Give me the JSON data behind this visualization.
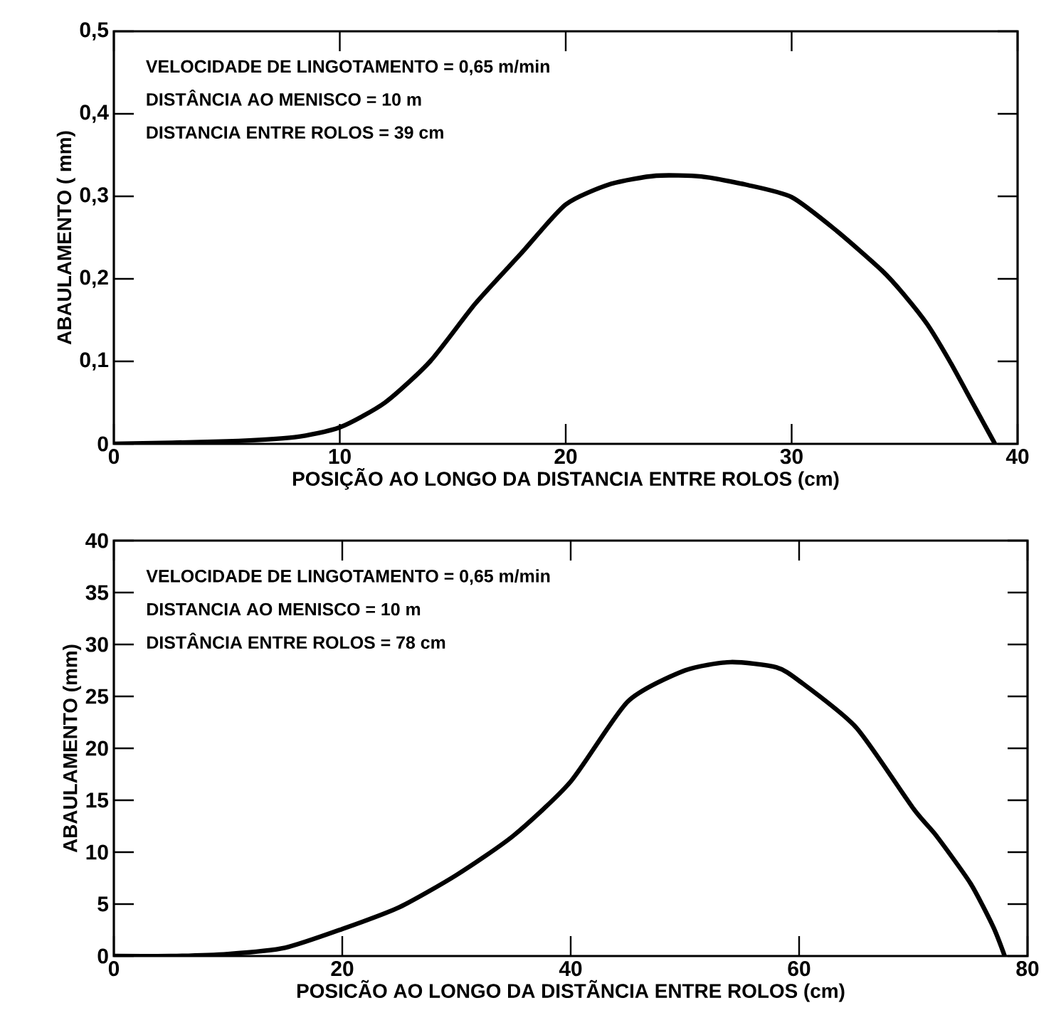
{
  "chart_data": [
    {
      "type": "line",
      "xlabel": "POSIÇÃO AO LONGO DA DISTANCIA ENTRE ROLOS (cm)",
      "ylabel": "ABAULAMENTO ( mm)",
      "annotations": [
        "VELOCIDADE DE LINGOTAMENTO = 0,65 m/min",
        "DISTÂNCIA AO MENISCO = 10 m",
        "DISTANCIA ENTRE ROLOS = 39 cm"
      ],
      "xlim": [
        0,
        40
      ],
      "ylim": [
        0,
        0.5
      ],
      "xticks": [
        0,
        10,
        20,
        30,
        40
      ],
      "yticks": [
        {
          "value": 0,
          "label": "0"
        },
        {
          "value": 0.1,
          "label": "0,1"
        },
        {
          "value": 0.2,
          "label": "0,2"
        },
        {
          "value": 0.3,
          "label": "0,3"
        },
        {
          "value": 0.4,
          "label": "0,4"
        },
        {
          "value": 0.5,
          "label": "0,5"
        }
      ],
      "grid": false,
      "marker": "none",
      "line_style": "solid",
      "series": [
        {
          "color": "#000000",
          "x": [
            0,
            5,
            8,
            10,
            12,
            14,
            16,
            18,
            20,
            22,
            24,
            26,
            28,
            30,
            32,
            34,
            35,
            36,
            37,
            38,
            38.5,
            39
          ],
          "values": [
            0,
            0.003,
            0.008,
            0.02,
            0.05,
            0.1,
            0.17,
            0.23,
            0.29,
            0.315,
            0.325,
            0.324,
            0.314,
            0.299,
            0.258,
            0.21,
            0.18,
            0.145,
            0.1,
            0.05,
            0.025,
            0
          ]
        }
      ]
    },
    {
      "type": "line",
      "xlabel": "POSICÃO AO LONGO DA DISTÃNCIA ENTRE ROLOS (cm)",
      "ylabel": "ABAULAMENTO (mm)",
      "annotations": [
        "VELOCIDADE DE LINGOTAMENTO = 0,65 m/min",
        "DISTANCIA AO MENISCO = 10 m",
        "DISTÂNCIA ENTRE ROLOS = 78 cm"
      ],
      "xlim": [
        0,
        80
      ],
      "ylim": [
        0,
        40
      ],
      "xticks": [
        0,
        20,
        40,
        60,
        80
      ],
      "yticks": [
        0,
        5,
        10,
        15,
        20,
        25,
        30,
        35,
        40
      ],
      "grid": false,
      "marker": "none",
      "line_style": "solid",
      "series": [
        {
          "color": "#000000",
          "x": [
            0,
            5,
            10,
            15,
            20,
            25,
            30,
            35,
            40,
            45,
            50,
            54,
            58,
            60,
            65,
            70,
            72,
            75,
            77,
            78
          ],
          "values": [
            0,
            0,
            0.2,
            0.8,
            2.6,
            4.7,
            7.8,
            11.6,
            16.8,
            24.5,
            27.5,
            28.3,
            27.8,
            26.5,
            22,
            14.2,
            11.6,
            7,
            2.8,
            0
          ]
        }
      ]
    }
  ]
}
